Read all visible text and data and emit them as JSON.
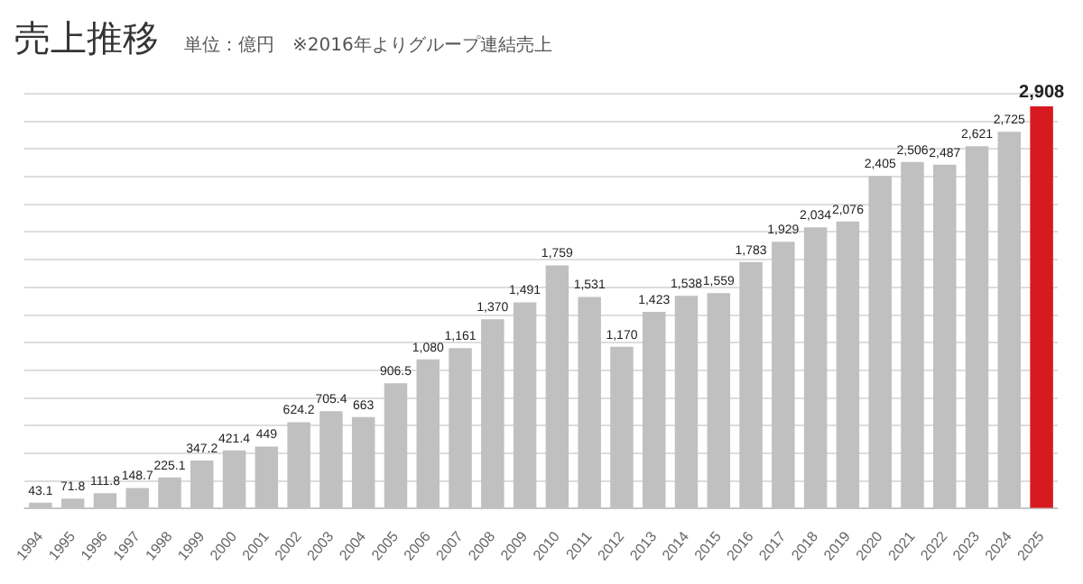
{
  "chart_data": {
    "type": "bar",
    "title": "売上推移",
    "subtitle": "単位：億円　※2016年よりグループ連結売上",
    "categories": [
      "1994",
      "1995",
      "1996",
      "1997",
      "1998",
      "1999",
      "2000",
      "2001",
      "2002",
      "2003",
      "2004",
      "2005",
      "2006",
      "2007",
      "2008",
      "2009",
      "2010",
      "2011",
      "2012",
      "2013",
      "2014",
      "2015",
      "2016",
      "2017",
      "2018",
      "2019",
      "2020",
      "2021",
      "2022",
      "2023",
      "2024",
      "2025"
    ],
    "values": [
      43.1,
      71.8,
      111.8,
      148.7,
      225.1,
      347.2,
      421.4,
      449,
      624.2,
      705.4,
      663,
      906.5,
      1080,
      1161,
      1370,
      1491,
      1759,
      1531,
      1170,
      1423,
      1538,
      1559,
      1783,
      1929,
      2034,
      2076,
      2405,
      2506,
      2487,
      2621,
      2725,
      2908
    ],
    "colors": [
      "#c0c0c0",
      "#c0c0c0",
      "#c0c0c0",
      "#c0c0c0",
      "#c0c0c0",
      "#c0c0c0",
      "#c0c0c0",
      "#c0c0c0",
      "#c0c0c0",
      "#c0c0c0",
      "#c0c0c0",
      "#c0c0c0",
      "#c0c0c0",
      "#c0c0c0",
      "#c0c0c0",
      "#c0c0c0",
      "#c0c0c0",
      "#c0c0c0",
      "#c0c0c0",
      "#c0c0c0",
      "#c0c0c0",
      "#c0c0c0",
      "#c0c0c0",
      "#c0c0c0",
      "#c0c0c0",
      "#c0c0c0",
      "#c0c0c0",
      "#c0c0c0",
      "#c0c0c0",
      "#c0c0c0",
      "#c0c0c0",
      "#d71920"
    ],
    "value_labels": [
      "43.1",
      "71.8",
      "111.8",
      "148.7",
      "225.1",
      "347.2",
      "421.4",
      "449",
      "624.2",
      "705.4",
      "663",
      "906.5",
      "1,080",
      "1,161",
      "1,370",
      "1,491",
      "1,759",
      "1,531",
      "1,170",
      "1,423",
      "1,538",
      "1,559",
      "1,783",
      "1,929",
      "2,034",
      "2,076",
      "2,405",
      "2,506",
      "2,487",
      "2,621",
      "2,725",
      "2,908"
    ],
    "grid": "y",
    "tick_labels": "x",
    "legend": false
  }
}
